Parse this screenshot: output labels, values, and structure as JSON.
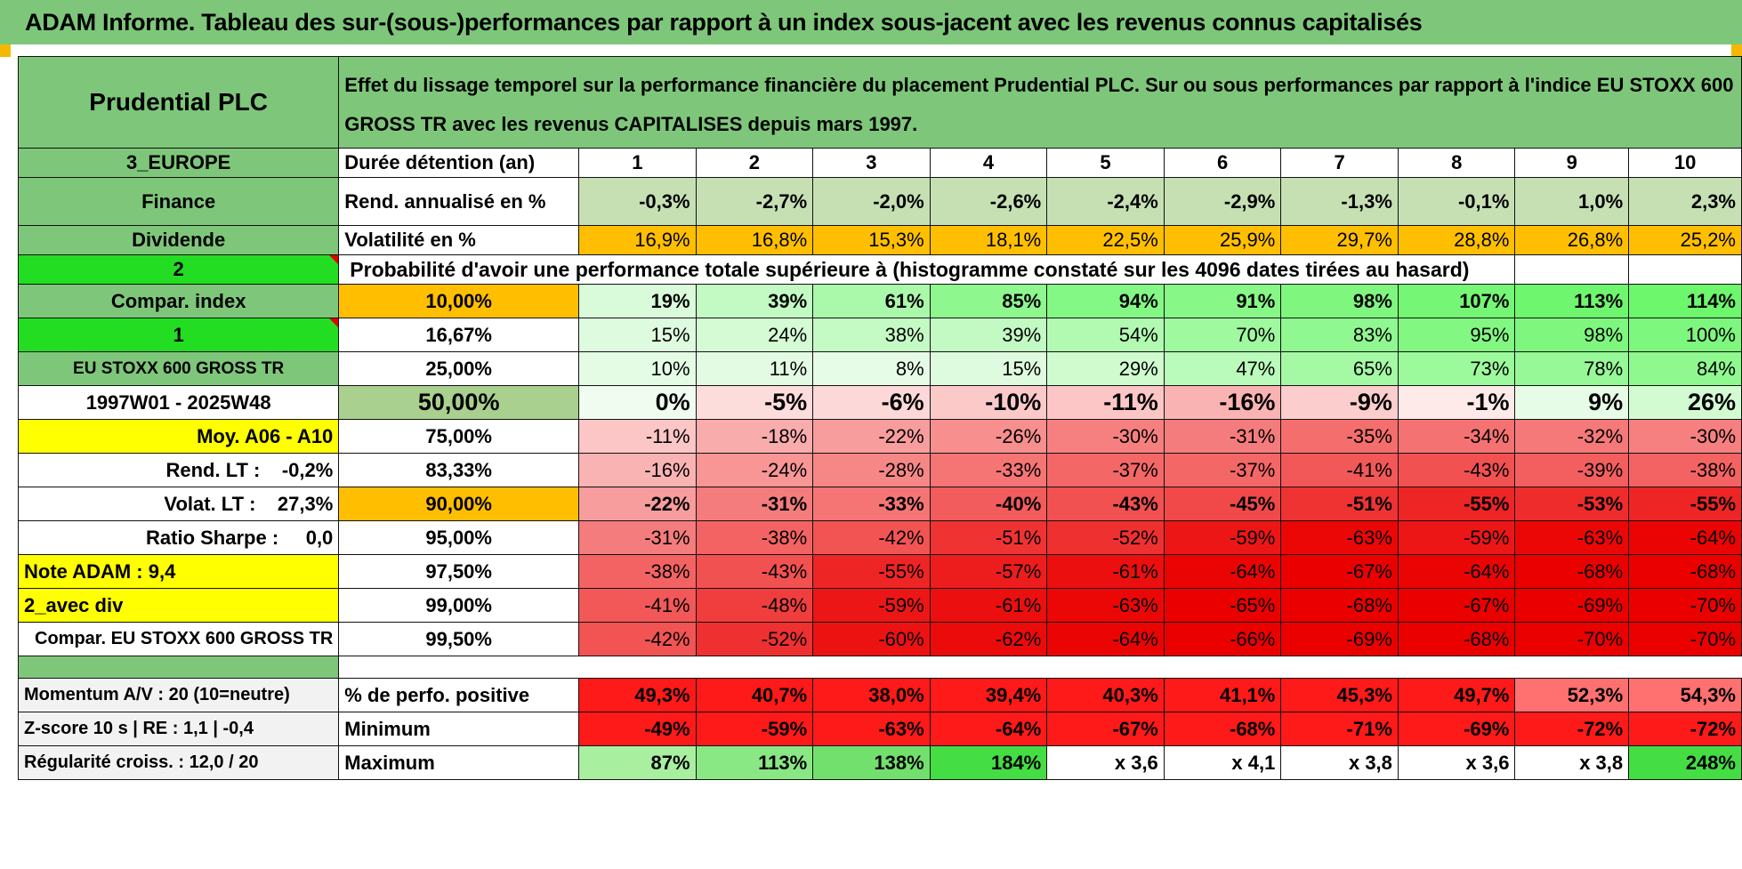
{
  "banner": "ADAM Informe. Tableau des sur-(sous-)performances par rapport à un index sous-jacent avec les revenus connus capitalisés",
  "left": {
    "company": "Prudential PLC",
    "region": "3_EUROPE",
    "sector": "Finance",
    "style": "Dividende",
    "code1": "2",
    "compar_index": "Compar. index",
    "code2": "1",
    "index_name": "EU STOXX 600 GROSS TR",
    "period": "1997W01 - 2025W48",
    "moy": "Moy. A06 - A10",
    "rend_lt": "Rend. LT :    -0,2%",
    "volat_lt": "Volat. LT :    27,3%",
    "sharpe": "Ratio Sharpe :     0,0",
    "note": "Note ADAM : 9,4",
    "avec_div": "2_avec div",
    "compar_full": "Compar. EU STOXX 600 GROSS TR",
    "momentum": "Momentum A/V : 20 (10=neutre)",
    "zscore": "Z-score 10 s | RE : 1,1 | -0,4",
    "regularite": "Régularité croiss. : 12,0 / 20"
  },
  "header_text": "Effet du lissage temporel sur la performance financière du placement Prudential PLC. Sur ou sous performances par rapport à l'indice EU STOXX 600 GROSS TR avec les revenus CAPITALISES depuis mars 1997.",
  "labels": {
    "duree": "Durée détention (an)",
    "rend": "Rend. annualisé en %",
    "vol": "Volatilité en %",
    "proba": "Probabilité d'avoir une performance totale supérieure à (histogramme constaté sur les 4096 dates tirées au hasard)",
    "pct_pos": "% de perfo. positive",
    "minimum": "Minimum",
    "maximum": "Maximum"
  },
  "years": [
    "1",
    "2",
    "3",
    "4",
    "5",
    "6",
    "7",
    "8",
    "9",
    "10"
  ],
  "rend": [
    "-0,3%",
    "-2,7%",
    "-2,0%",
    "-2,6%",
    "-2,4%",
    "-2,9%",
    "-1,3%",
    "-0,1%",
    "1,0%",
    "2,3%"
  ],
  "vol": [
    "16,9%",
    "16,8%",
    "15,3%",
    "18,1%",
    "22,5%",
    "25,9%",
    "29,7%",
    "28,8%",
    "26,8%",
    "25,2%"
  ],
  "quantiles": [
    {
      "q": "10,00%",
      "v": [
        "19%",
        "39%",
        "61%",
        "85%",
        "94%",
        "91%",
        "98%",
        "107%",
        "113%",
        "114%"
      ]
    },
    {
      "q": "16,67%",
      "v": [
        "15%",
        "24%",
        "38%",
        "39%",
        "54%",
        "70%",
        "83%",
        "95%",
        "98%",
        "100%"
      ]
    },
    {
      "q": "25,00%",
      "v": [
        "10%",
        "11%",
        "8%",
        "15%",
        "29%",
        "47%",
        "65%",
        "73%",
        "78%",
        "84%"
      ]
    },
    {
      "q": "50,00%",
      "v": [
        "0%",
        "-5%",
        "-6%",
        "-10%",
        "-11%",
        "-16%",
        "-9%",
        "-1%",
        "9%",
        "26%"
      ]
    },
    {
      "q": "75,00%",
      "v": [
        "-11%",
        "-18%",
        "-22%",
        "-26%",
        "-30%",
        "-31%",
        "-35%",
        "-34%",
        "-32%",
        "-30%"
      ]
    },
    {
      "q": "83,33%",
      "v": [
        "-16%",
        "-24%",
        "-28%",
        "-33%",
        "-37%",
        "-37%",
        "-41%",
        "-43%",
        "-39%",
        "-38%"
      ]
    },
    {
      "q": "90,00%",
      "v": [
        "-22%",
        "-31%",
        "-33%",
        "-40%",
        "-43%",
        "-45%",
        "-51%",
        "-55%",
        "-53%",
        "-55%"
      ]
    },
    {
      "q": "95,00%",
      "v": [
        "-31%",
        "-38%",
        "-42%",
        "-51%",
        "-52%",
        "-59%",
        "-63%",
        "-59%",
        "-63%",
        "-64%"
      ]
    },
    {
      "q": "97,50%",
      "v": [
        "-38%",
        "-43%",
        "-55%",
        "-57%",
        "-61%",
        "-64%",
        "-67%",
        "-64%",
        "-68%",
        "-68%"
      ]
    },
    {
      "q": "99,00%",
      "v": [
        "-41%",
        "-48%",
        "-59%",
        "-61%",
        "-63%",
        "-65%",
        "-68%",
        "-67%",
        "-69%",
        "-70%"
      ]
    },
    {
      "q": "99,50%",
      "v": [
        "-42%",
        "-52%",
        "-60%",
        "-62%",
        "-64%",
        "-66%",
        "-69%",
        "-68%",
        "-70%",
        "-70%"
      ]
    }
  ],
  "pct_pos": [
    "49,3%",
    "40,7%",
    "38,0%",
    "39,4%",
    "40,3%",
    "41,1%",
    "45,3%",
    "49,7%",
    "52,3%",
    "54,3%"
  ],
  "minimum": [
    "-49%",
    "-59%",
    "-63%",
    "-64%",
    "-67%",
    "-68%",
    "-71%",
    "-69%",
    "-72%",
    "-72%"
  ],
  "maximum": [
    "87%",
    "113%",
    "138%",
    "184%",
    "x 3,6",
    "x 4,1",
    "x 3,8",
    "x 3,6",
    "x 3,8",
    "248%"
  ]
}
